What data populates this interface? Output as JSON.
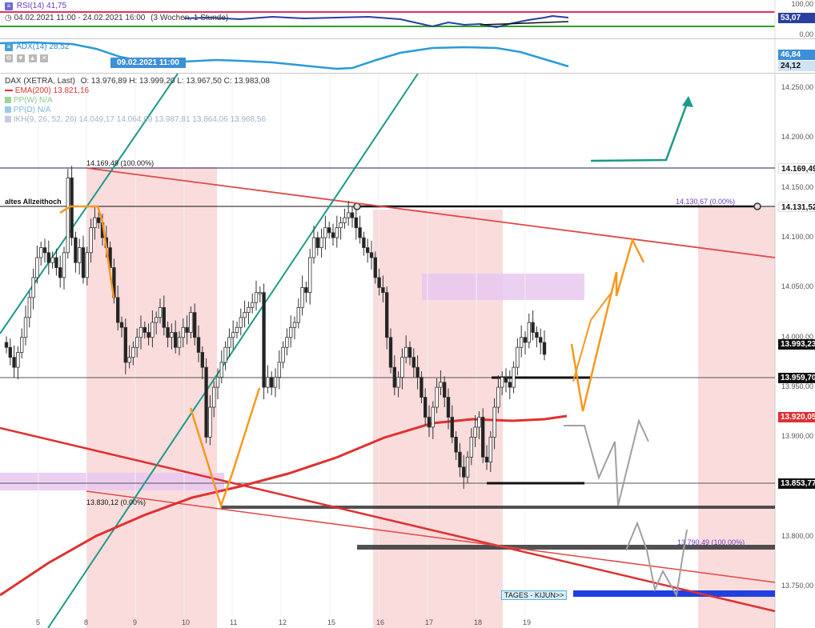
{
  "rsi_pane": {
    "label": "RSI(14)",
    "value": "41,75",
    "period": "04.02.2021 11:00 - 24.02.2021 16:00",
    "range": "(3 Wochen, 1 Stunde)",
    "axis_labels": [
      "100,00",
      "0,00"
    ],
    "price_tag": "53,07"
  },
  "adx_pane": {
    "label": "ADX(14)",
    "value": "28,52",
    "date_tag": "09.02.2021 11:00",
    "price_tags": [
      "46,84",
      "24,12"
    ]
  },
  "main_pane": {
    "instrument": "DAX (XETRA, Last)",
    "ohlc": "O: 13.976,89  H: 13.999,20  L: 13.967,50  C: 13.983,08",
    "legend": [
      {
        "label": "EMA(200)",
        "value": "13.821,16",
        "color": "#e03030"
      },
      {
        "label": "PP(W)",
        "value": "N/A",
        "color": "#9ed39e"
      },
      {
        "label": "PP(D)",
        "value": "N/A",
        "color": "#9ec8e8"
      },
      {
        "label": "IKH(9, 26, 52, 26)",
        "value": "14.049,17  14.064,69  13.987,81  13.864,06  13.968,56",
        "color": "#c8c8e8"
      }
    ],
    "annotations": {
      "altes": "altes Allzeithoch",
      "high_label": "14.169,49 (100.00%)",
      "low_label": "13.830,12 (0.00%)",
      "right_top": "14.130,67 (0.00%)",
      "right_low": "13.790,49 (100.00%)",
      "kijun": "TAGES - KIJUN>>"
    },
    "price_axis": [
      "14.250,00",
      "14.200,00",
      "14.150,00",
      "14.100,00",
      "14.050,00",
      "14.000,00",
      "13.950,00",
      "13.900,00",
      "13.850,00",
      "13.800,00",
      "13.750,00"
    ],
    "price_tags": [
      {
        "text": "14.169,49",
        "bg": "#ffffff",
        "color": "#111111"
      },
      {
        "text": "14.131,52",
        "bg": "#ffffff",
        "color": "#111111"
      },
      {
        "text": "13.993,23",
        "bg": "#111111",
        "color": "#ffffff"
      },
      {
        "text": "13.959,70",
        "bg": "#111111",
        "color": "#ffffff"
      },
      {
        "text": "13.920,05",
        "bg": "#e03030",
        "color": "#ffffff"
      },
      {
        "text": "13.853,77",
        "bg": "#111111",
        "color": "#ffffff"
      }
    ],
    "x_axis": [
      "5",
      "8",
      "9",
      "10",
      "11",
      "12",
      "15",
      "16",
      "17",
      "18",
      "19"
    ]
  },
  "chart_data": {
    "type": "candlestick",
    "instrument": "DAX (XETRA, Last)",
    "interval": "1 Stunde",
    "period": "04.02.2021 11:00 - 24.02.2021 16:00",
    "x_ticks": [
      "5",
      "8",
      "9",
      "10",
      "11",
      "12",
      "15",
      "16",
      "17",
      "18",
      "19"
    ],
    "y_range": [
      13720,
      14275
    ],
    "close_series": [
      13990,
      13980,
      13970,
      13985,
      14000,
      14020,
      14040,
      14060,
      14080,
      14090,
      14085,
      14075,
      14080,
      14070,
      14060,
      14085,
      14160,
      14100,
      14075,
      14090,
      14060,
      14085,
      14110,
      14120,
      14115,
      14100,
      14090,
      14070,
      14040,
      14015,
      14010,
      13975,
      13980,
      13990,
      14000,
      14010,
      14005,
      14000,
      14015,
      14020,
      14030,
      14010,
      14000,
      14005,
      13990,
      14000,
      14010,
      14005,
      14025,
      14000,
      13985,
      13970,
      13900,
      13930,
      13950,
      13960,
      13975,
      13990,
      14000,
      14005,
      14010,
      14020,
      14025,
      14030,
      14035,
      14045,
      14045,
      13950,
      13960,
      13950,
      13960,
      13975,
      13990,
      14000,
      14010,
      14015,
      14030,
      14050,
      14045,
      14080,
      14100,
      14090,
      14100,
      14110,
      14105,
      14100,
      14110,
      14115,
      14120,
      14125,
      14120,
      14110,
      14100,
      14090,
      14085,
      14080,
      14060,
      14050,
      14045,
      14000,
      13970,
      13950,
      13960,
      13980,
      13990,
      13980,
      13970,
      13960,
      13940,
      13920,
      13910,
      13930,
      13950,
      13955,
      13940,
      13920,
      13900,
      13885,
      13870,
      13860,
      13880,
      13900,
      13910,
      13920,
      13880,
      13875,
      13900,
      13930,
      13950,
      13960,
      13955,
      13950,
      13970,
      13990,
      14000,
      13995,
      14015,
      14005,
      14000,
      13995,
      13983
    ],
    "ema200": {
      "label": "EMA(200)",
      "value": 13821.16
    },
    "levels": [
      14169.49,
      14131.52,
      13959.7,
      13853.77,
      13830.12,
      13790.49
    ]
  }
}
